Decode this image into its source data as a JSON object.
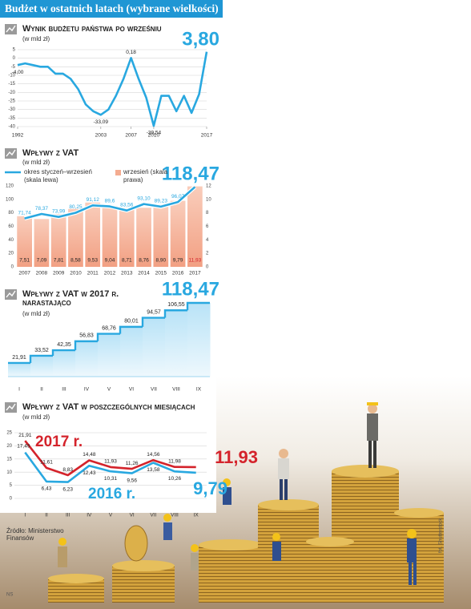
{
  "header": {
    "title": "Budżet w ostatnich latach (wybrane wielkości)"
  },
  "chart_data": [
    {
      "type": "line",
      "title": "Wynik budżetu państwa po wrześniu",
      "subtitle": "(w mld zł)",
      "x": [
        1992,
        1993,
        1994,
        1995,
        1996,
        1997,
        1998,
        1999,
        2000,
        2001,
        2002,
        2003,
        2004,
        2005,
        2006,
        2007,
        2008,
        2009,
        2010,
        2011,
        2012,
        2013,
        2014,
        2015,
        2016,
        2017
      ],
      "values": [
        -4.0,
        -3,
        -4,
        -5,
        -5,
        -9,
        -9,
        -12,
        -18,
        -27,
        -31,
        -33.09,
        -30,
        -22,
        -12,
        0.18,
        -12,
        -23,
        -39.54,
        -22,
        -22,
        -31,
        -22,
        -32,
        -21,
        3.8
      ],
      "value_labels": [
        "-4,00",
        null,
        null,
        null,
        null,
        null,
        null,
        null,
        null,
        null,
        null,
        "-33,09",
        null,
        null,
        null,
        "0,18",
        null,
        null,
        "-39,54",
        null,
        null,
        null,
        null,
        null,
        null,
        "3,80"
      ],
      "color": "#29a8e0",
      "xlim": [
        1992,
        2017
      ],
      "ylim": [
        -40,
        5
      ],
      "xticks": [
        1992,
        2003,
        2007,
        2010,
        2017
      ],
      "yticks": [
        5,
        0,
        -5,
        -10,
        -15,
        -20,
        -25,
        -30,
        -35,
        -40
      ],
      "grid": true
    },
    {
      "type": "bar_line",
      "title": "Wpływy z VAT",
      "subtitle": "(w mld zł)",
      "categories": [
        "2007",
        "2008",
        "2009",
        "2010",
        "2011",
        "2012",
        "2013",
        "2014",
        "2015",
        "2016",
        "2017"
      ],
      "series": [
        {
          "name": "okres styczeń–wrzesień (skala lewa)",
          "type": "line",
          "color": "#29a8e0",
          "values": [
            71.74,
            78.37,
            73.99,
            80.25,
            91.12,
            89.6,
            83.56,
            93.1,
            89.23,
            96.07,
            118.47
          ],
          "value_labels": [
            "71,74",
            "78,37",
            "73,99",
            "80,25",
            "91,12",
            "89,6",
            "83,56",
            "93,10",
            "89,23",
            "96,07",
            "118,47"
          ]
        },
        {
          "name": "wrzesień (skala prawa)",
          "type": "bar",
          "axis": "y2",
          "color": "#f4ac90",
          "values": [
            7.51,
            7.09,
            7.81,
            8.58,
            9.53,
            9.04,
            8.71,
            8.76,
            8.9,
            9.79,
            11.93
          ],
          "value_labels": [
            "7,51",
            "7,09",
            "7,81",
            "8,58",
            "9,53",
            "9,04",
            "8,71",
            "8,76",
            "8,90",
            "9,79",
            "11,93"
          ]
        }
      ],
      "ylim": [
        0,
        120
      ],
      "yticks": [
        0,
        20,
        40,
        60,
        80,
        100,
        120
      ],
      "y2lim": [
        0,
        12
      ],
      "y2ticks": [
        0,
        2,
        4,
        6,
        8,
        10,
        12
      ]
    },
    {
      "type": "step_area",
      "title": "Wpływy z VAT w 2017 r. narastająco",
      "subtitle": "(w mld zł)",
      "categories": [
        "I",
        "II",
        "III",
        "IV",
        "V",
        "VI",
        "VII",
        "VIII",
        "IX"
      ],
      "values": [
        21.91,
        33.52,
        42.35,
        56.83,
        68.76,
        80.01,
        94.57,
        106.55,
        118.47
      ],
      "value_labels": [
        "21,91",
        "33,52",
        "42,35",
        "56,83",
        "68,76",
        "80,01",
        "94,57",
        "106,55",
        "118,47"
      ],
      "color": "#29a8e0"
    },
    {
      "type": "line",
      "title": "Wpływy z VAT w poszczególnych miesiącach",
      "subtitle": "(w mld zł)",
      "categories": [
        "I",
        "II",
        "III",
        "IV",
        "V",
        "VI",
        "VII",
        "VIII",
        "IX"
      ],
      "series": [
        {
          "name": "2017 r.",
          "color": "#d4232b",
          "values": [
            21.91,
            11.61,
            8.83,
            14.48,
            11.93,
            11.26,
            14.56,
            11.98,
            11.93
          ],
          "value_labels": [
            "21,91",
            "11,61",
            "8,83",
            "14,48",
            "11,93",
            "11,26",
            "14,56",
            "11,98",
            "11,93"
          ]
        },
        {
          "name": "2016 r.",
          "color": "#29a8e0",
          "values": [
            17.49,
            6.43,
            6.23,
            12.43,
            10.31,
            9.56,
            13.58,
            10.26,
            9.79
          ],
          "value_labels": [
            "17,49",
            "6,43",
            "6,23",
            "12,43",
            "10,31",
            "9,56",
            "13,58",
            "10,26",
            "9,79"
          ]
        }
      ],
      "ylim": [
        0,
        25
      ],
      "yticks": [
        0,
        5,
        10,
        15,
        20,
        25
      ],
      "grid": true
    }
  ],
  "source": "Źródło: Ministerstwo Finansów",
  "photo_credit": "fot. Shutterstock",
  "footer_mark": "NS"
}
